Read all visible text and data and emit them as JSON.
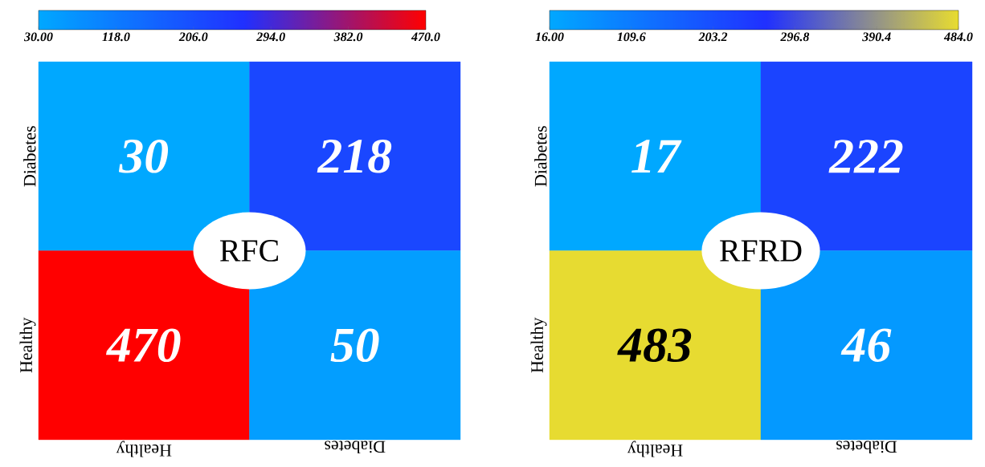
{
  "chart_data": [
    {
      "type": "heatmap",
      "title": "RFC",
      "categories": [
        "Healthy",
        "Diabetes"
      ],
      "y_categories": [
        "Diabetes",
        "Healthy"
      ],
      "cells": [
        [
          30,
          218
        ],
        [
          470,
          50
        ]
      ],
      "clim": [
        30,
        470
      ],
      "cticks": [
        {
          "value": 30,
          "label": "30.00"
        },
        {
          "value": 118,
          "label": "118.0"
        },
        {
          "value": 206,
          "label": "206.0"
        },
        {
          "value": 294,
          "label": "294.0"
        },
        {
          "value": 382,
          "label": "382.0"
        },
        {
          "value": 470,
          "label": "470.0"
        }
      ],
      "data_labels": true
    },
    {
      "type": "heatmap",
      "title": "RFRD",
      "categories": [
        "Healthy",
        "Diabetes"
      ],
      "y_categories": [
        "Diabetes",
        "Healthy"
      ],
      "cells": [
        [
          17,
          222
        ],
        [
          483,
          46
        ]
      ],
      "clim": [
        16,
        484
      ],
      "cticks": [
        {
          "value": 16,
          "label": "16.00"
        },
        {
          "value": 109.6,
          "label": "109.6"
        },
        {
          "value": 203.2,
          "label": "203.2"
        },
        {
          "value": 296.8,
          "label": "296.8"
        },
        {
          "value": 390.4,
          "label": "390.4"
        },
        {
          "value": 484,
          "label": "484.0"
        }
      ],
      "data_labels": true
    }
  ]
}
